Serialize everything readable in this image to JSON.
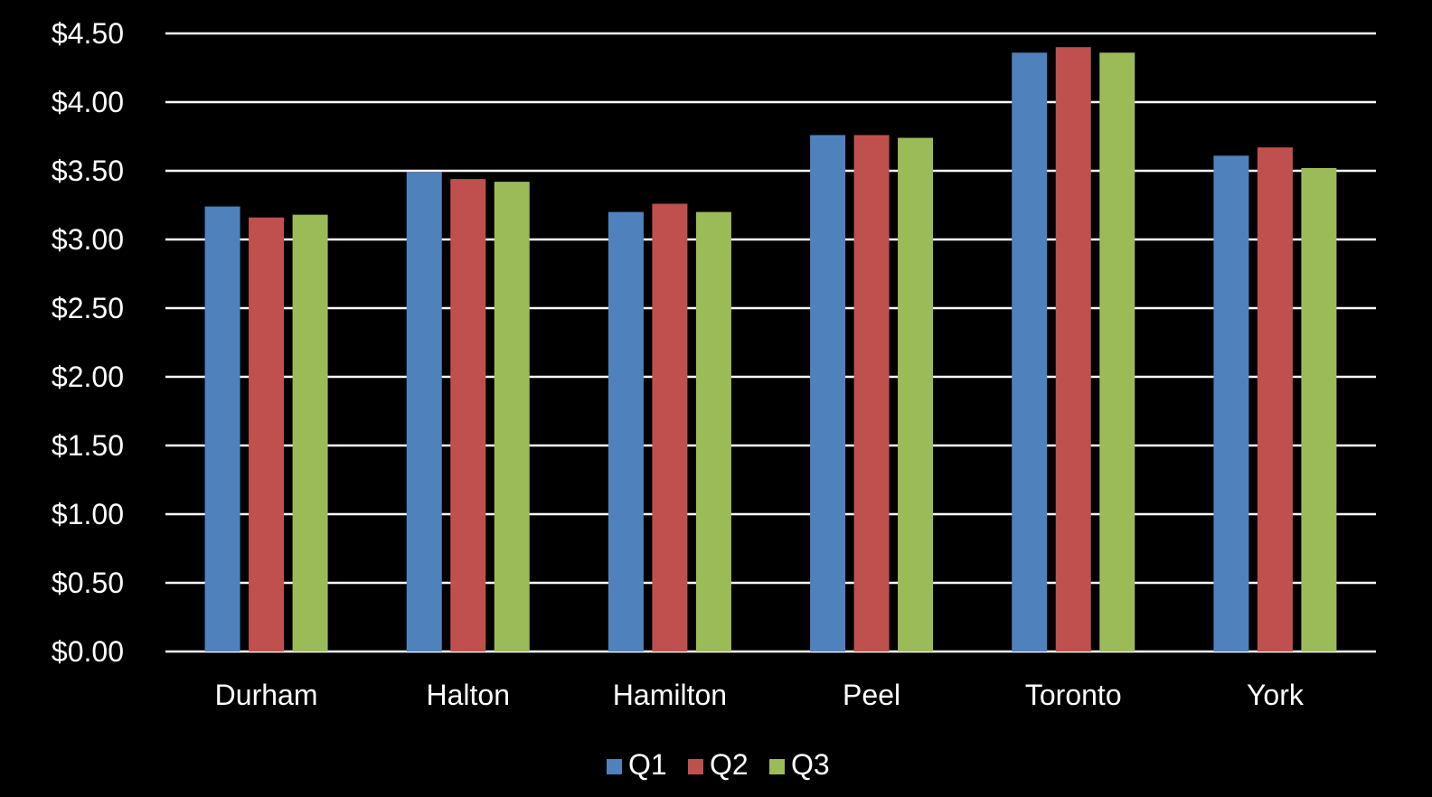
{
  "chart_data": {
    "type": "bar",
    "categories": [
      "Durham",
      "Halton",
      "Hamilton",
      "Peel",
      "Toronto",
      "York"
    ],
    "series": [
      {
        "name": "Q1",
        "color": "#4f81bd",
        "values": [
          3.24,
          3.49,
          3.2,
          3.76,
          4.36,
          3.61
        ]
      },
      {
        "name": "Q2",
        "color": "#c0504d",
        "values": [
          3.16,
          3.44,
          3.26,
          3.76,
          4.4,
          3.67
        ]
      },
      {
        "name": "Q3",
        "color": "#9bbb59",
        "values": [
          3.18,
          3.42,
          3.2,
          3.74,
          4.36,
          3.52
        ]
      }
    ],
    "yticks": [
      "$0.00",
      "$0.50",
      "$1.00",
      "$1.50",
      "$2.00",
      "$2.50",
      "$3.00",
      "$3.50",
      "$4.00",
      "$4.50"
    ],
    "ylim": [
      0,
      4.5
    ],
    "grid": true,
    "legend_position": "bottom",
    "title": "",
    "xlabel": "",
    "ylabel": ""
  }
}
